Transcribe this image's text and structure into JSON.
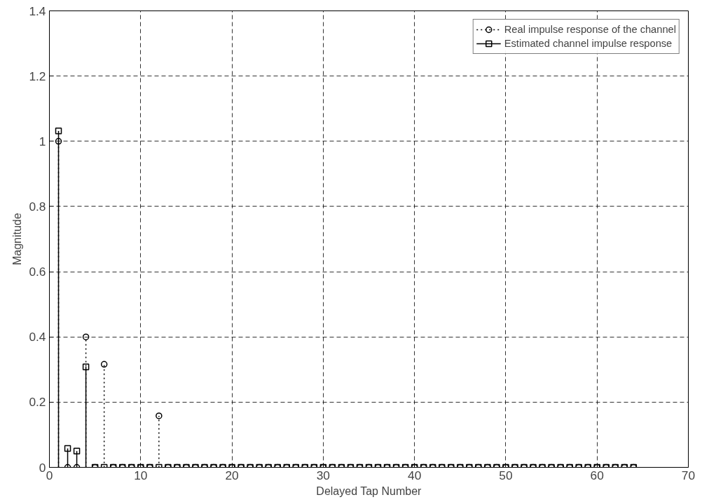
{
  "chart_data": {
    "type": "lollipop",
    "xlabel": "Delayed Tap Number",
    "ylabel": "Magnitude",
    "x": [
      1,
      2,
      3,
      4,
      5,
      6,
      7,
      8,
      9,
      10,
      11,
      12,
      13,
      14,
      15,
      16,
      17,
      18,
      19,
      20,
      21,
      22,
      23,
      24,
      25,
      26,
      27,
      28,
      29,
      30,
      31,
      32,
      33,
      34,
      35,
      36,
      37,
      38,
      39,
      40,
      41,
      42,
      43,
      44,
      45,
      46,
      47,
      48,
      49,
      50,
      51,
      52,
      53,
      54,
      55,
      56,
      57,
      58,
      59,
      60,
      61,
      62,
      63,
      64
    ],
    "series": [
      {
        "name": "Real impulse response of the channel",
        "color": "#000000",
        "marker": "circle",
        "line_style": "dotted",
        "values": [
          1,
          0,
          0,
          0.4,
          0,
          0.316,
          0,
          0,
          0,
          0,
          0,
          0.158,
          0,
          0,
          0,
          0,
          0,
          0,
          0,
          0,
          0,
          0,
          0,
          0,
          0,
          0,
          0,
          0,
          0,
          0,
          0,
          0,
          0,
          0,
          0,
          0,
          0,
          0,
          0,
          0,
          0,
          0,
          0,
          0,
          0,
          0,
          0,
          0,
          0,
          0,
          0,
          0,
          0,
          0,
          0,
          0,
          0,
          0,
          0,
          0,
          0,
          0,
          0,
          0
        ]
      },
      {
        "name": "Estimated channel impulse response",
        "color": "#000000",
        "marker": "square",
        "line_style": "solid",
        "values": [
          1.032,
          0.058,
          0.05,
          0.308,
          0,
          0,
          0,
          0,
          0,
          0,
          0,
          0,
          0,
          0,
          0,
          0,
          0,
          0,
          0,
          0,
          0,
          0,
          0,
          0,
          0,
          0,
          0,
          0,
          0,
          0,
          0,
          0,
          0,
          0,
          0,
          0,
          0,
          0,
          0,
          0,
          0,
          0,
          0,
          0,
          0,
          0,
          0,
          0,
          0,
          0,
          0,
          0,
          0,
          0,
          0,
          0,
          0,
          0,
          0,
          0,
          0,
          0,
          0,
          0
        ]
      }
    ],
    "xlim": [
      0,
      70
    ],
    "xticks": [
      0,
      10,
      20,
      30,
      40,
      50,
      60,
      70
    ],
    "ylim": [
      0,
      1.4
    ],
    "yticks": [
      0,
      0.2,
      0.4,
      0.6,
      0.8,
      1,
      1.2,
      1.4
    ],
    "grid": true,
    "legend": "top right"
  }
}
